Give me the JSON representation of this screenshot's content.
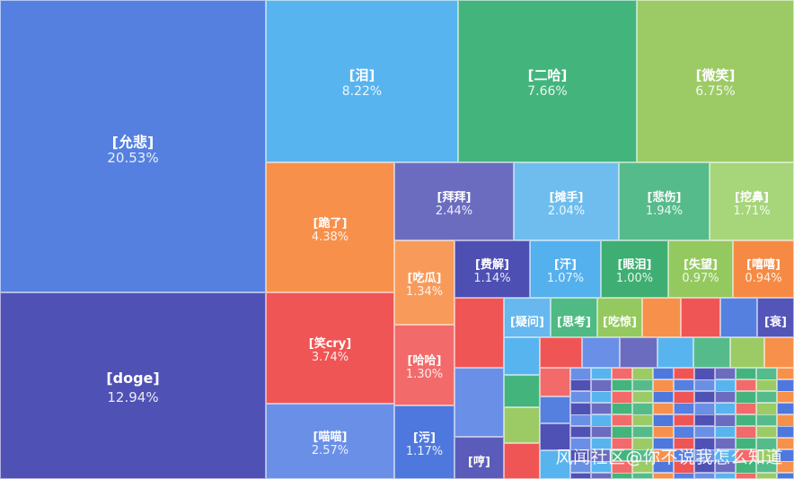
{
  "watermark": "风闻社区@你不说我怎么知道",
  "chart_data": {
    "type": "treemap",
    "items": [
      {
        "name": "[允悲]",
        "value": 20.53,
        "label": "20.53%",
        "color": "#5580e0"
      },
      {
        "name": "[doge]",
        "value": 12.94,
        "label": "12.94%",
        "color": "#5051b5"
      },
      {
        "name": "[泪]",
        "value": 8.22,
        "label": "8.22%",
        "color": "#58b4ee"
      },
      {
        "name": "[二哈]",
        "value": 7.66,
        "label": "7.66%",
        "color": "#43b57c"
      },
      {
        "name": "[微笑]",
        "value": 6.75,
        "label": "6.75%",
        "color": "#9ccb66"
      },
      {
        "name": "[跪了]",
        "value": 4.38,
        "label": "4.38%",
        "color": "#f7904b"
      },
      {
        "name": "[笑cry]",
        "value": 3.74,
        "label": "3.74%",
        "color": "#f05555"
      },
      {
        "name": "[喵喵]",
        "value": 2.57,
        "label": "2.57%",
        "color": "#6a8fe6"
      },
      {
        "name": "[拜拜]",
        "value": 2.44,
        "label": "2.44%",
        "color": "#6b6cc0"
      },
      {
        "name": "[摊手]",
        "value": 2.04,
        "label": "2.04%",
        "color": "#6ebdee"
      },
      {
        "name": "[悲伤]",
        "value": 1.94,
        "label": "1.94%",
        "color": "#56bb8a"
      },
      {
        "name": "[挖鼻]",
        "value": 1.71,
        "label": "1.71%",
        "color": "#a6d57a"
      },
      {
        "name": "[吃瓜]",
        "value": 1.34,
        "label": "1.34%",
        "color": "#f89a5a"
      },
      {
        "name": "[哈哈]",
        "value": 1.3,
        "label": "1.30%",
        "color": "#f26a6a"
      },
      {
        "name": "[污]",
        "value": 1.17,
        "label": "1.17%",
        "color": "#4e78de"
      },
      {
        "name": "[费解]",
        "value": 1.14,
        "label": "1.14%",
        "color": "#4d4fb3"
      },
      {
        "name": "[汗]",
        "value": 1.07,
        "label": "1.07%",
        "color": "#55b0ee"
      },
      {
        "name": "[眼泪]",
        "value": 1.0,
        "label": "1.00%",
        "color": "#3fae72"
      },
      {
        "name": "[失望]",
        "value": 0.97,
        "label": "0.97%",
        "color": "#94c95f"
      },
      {
        "name": "[嘻嘻]",
        "value": 0.94,
        "label": "0.94%",
        "color": "#f68a44"
      },
      {
        "name": "[疑问]",
        "value": null,
        "label": "",
        "color": "#66b8ee"
      },
      {
        "name": "[思考]",
        "value": null,
        "label": "",
        "color": "#4fba83"
      },
      {
        "name": "[吃惊]",
        "value": null,
        "label": "",
        "color": "#94c95f"
      },
      {
        "name": "[衰]",
        "value": null,
        "label": "",
        "color": "#5455b8"
      },
      {
        "name": "[哼]",
        "value": null,
        "label": "",
        "color": "#5b5cb9"
      }
    ]
  }
}
